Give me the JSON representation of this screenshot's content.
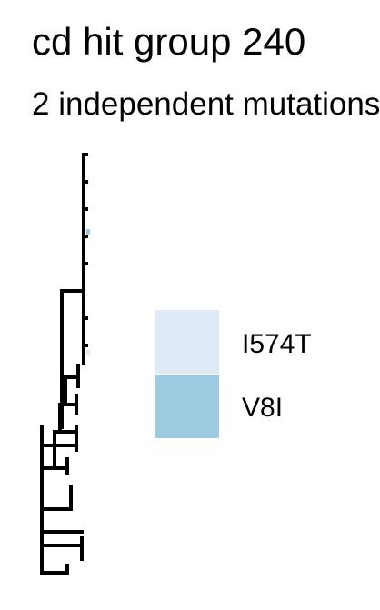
{
  "chart_data": {
    "type": "tree",
    "title": "cd hit group 240",
    "subtitle": "2 independent mutations",
    "legend": {
      "placement": "right",
      "entries": [
        {
          "label": "I574T",
          "color": "#deebf7"
        },
        {
          "label": "V8I",
          "color": "#9ecae1"
        }
      ]
    },
    "colors": {
      "branch": "#000000",
      "background": "#ffffff"
    }
  }
}
